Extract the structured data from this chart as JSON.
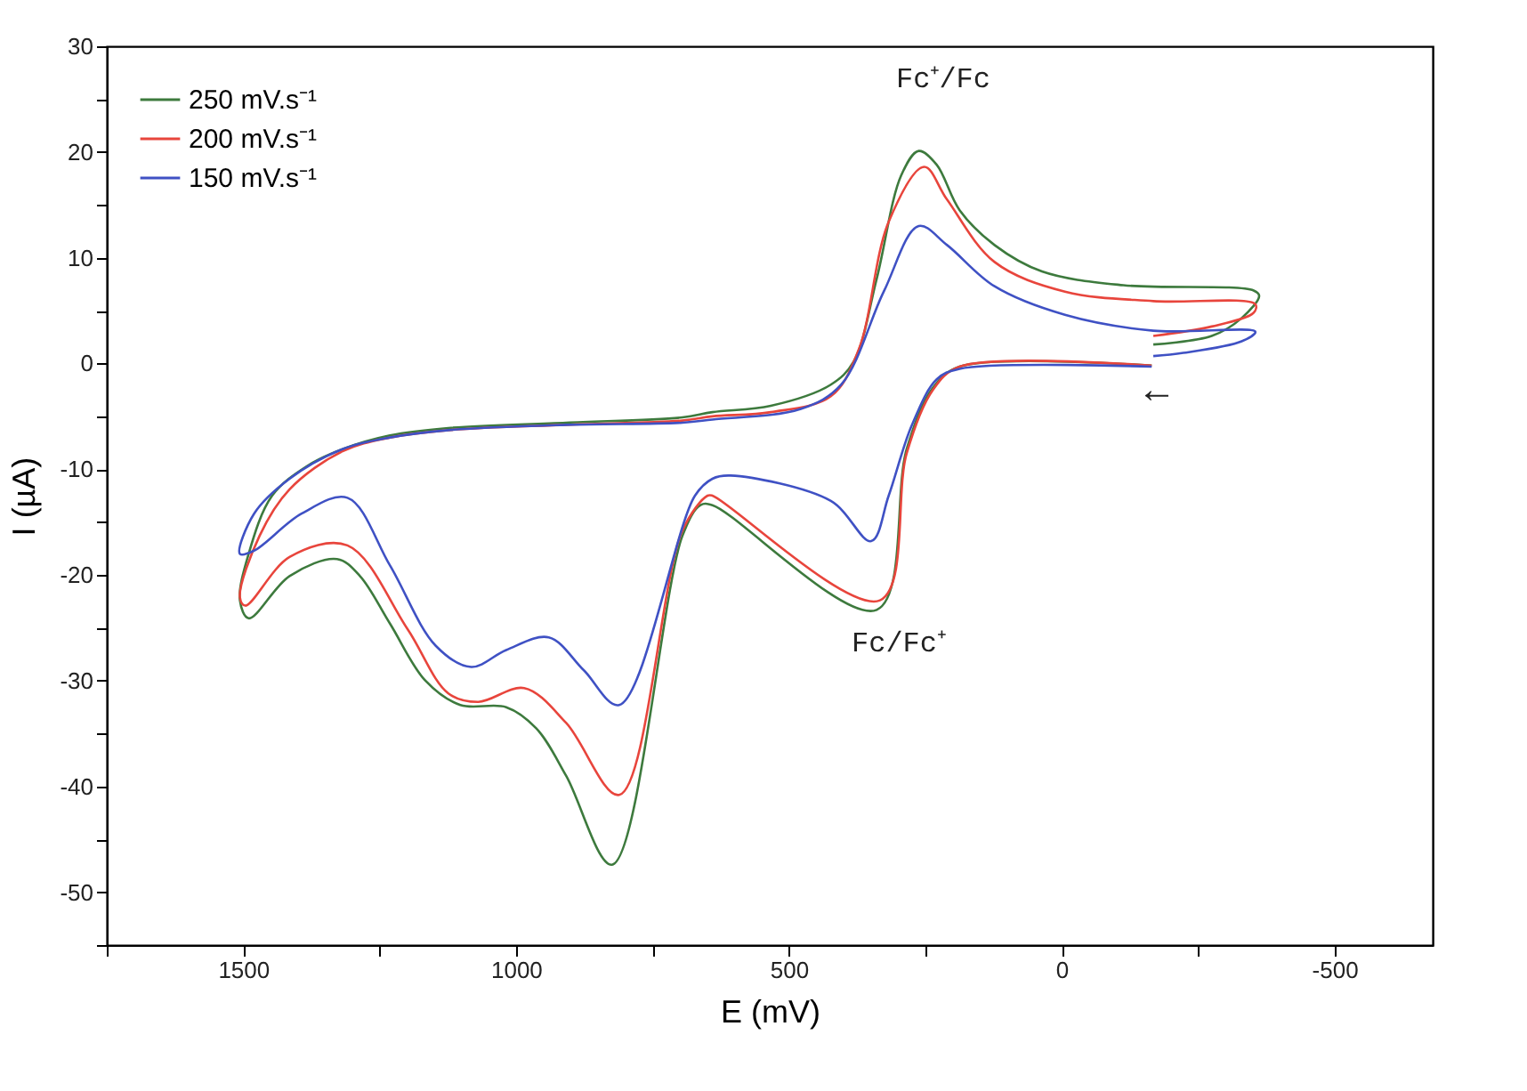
{
  "chart_data": {
    "type": "line",
    "xlabel": "E (mV)",
    "ylabel": "I (µA)",
    "xlim": [
      1750,
      -680
    ],
    "ylim": [
      -55,
      30
    ],
    "xticks": [
      {
        "value": 1750,
        "label": null
      },
      1500,
      {
        "value": 1250,
        "label": null
      },
      1000,
      {
        "value": 750,
        "label": null
      },
      500,
      {
        "value": 250,
        "label": null
      },
      0,
      {
        "value": -250,
        "label": null
      },
      -500
    ],
    "yticks": [
      {
        "value": -55,
        "label": null
      },
      -50,
      {
        "value": -45,
        "label": null
      },
      -40,
      {
        "value": -35,
        "label": null
      },
      -30,
      {
        "value": -25,
        "label": null
      },
      -20,
      {
        "value": -15,
        "label": null
      },
      -10,
      {
        "value": -5,
        "label": null
      },
      0,
      {
        "value": 5,
        "label": null
      },
      10,
      {
        "value": 15,
        "label": null
      },
      20,
      {
        "value": 25,
        "label": null
      },
      30
    ],
    "grid": false,
    "legend": "top left",
    "line_style": "solid",
    "marker": "none",
    "series": [
      {
        "name": "250 mV.s⁻¹",
        "color": "#3d7a3d",
        "x": [
          -165,
          187,
          236,
          284,
          339,
          640,
          662,
          695,
          824,
          908,
          963,
          1018,
          1102,
          1166,
          1231,
          1286,
          1328,
          1415,
          1490,
          1506,
          1490,
          1447,
          1383,
          1318,
          1231,
          1124,
          908,
          695,
          640,
          533,
          423,
          381,
          339,
          294,
          262,
          229,
          187,
          123,
          36,
          -113,
          -352,
          -362,
          -330,
          -275,
          -168
        ],
        "values": [
          -0.2,
          -0.3,
          -2.3,
          -8.1,
          -23.3,
          -13.4,
          -13.4,
          -16.3,
          -47.4,
          -39.0,
          -34.5,
          -32.5,
          -32.3,
          -30.0,
          -24.6,
          -20.1,
          -18.5,
          -20.1,
          -24.1,
          -22.4,
          -18.0,
          -12.5,
          -9.7,
          -8.1,
          -6.8,
          -6.1,
          -5.6,
          -5.1,
          -4.6,
          -4.0,
          -2.0,
          0.2,
          8.0,
          17.8,
          20.1,
          18.8,
          14.5,
          11.2,
          8.7,
          7.4,
          6.9,
          6.4,
          4.3,
          2.6,
          1.8
        ]
      },
      {
        "name": "200 mV.s⁻¹",
        "color": "#e8453c",
        "x": [
          -165,
          187,
          236,
          284,
          333,
          640,
          649,
          695,
          811,
          908,
          985,
          1069,
          1124,
          1199,
          1309,
          1415,
          1496,
          1506,
          1470,
          1415,
          1318,
          1231,
          1124,
          908,
          695,
          640,
          533,
          423,
          372,
          317,
          252,
          210,
          123,
          -6,
          -168,
          -355,
          -352,
          -275,
          -168
        ],
        "values": [
          -0.2,
          -0.3,
          -2.5,
          -8.5,
          -22.4,
          -12.5,
          -12.5,
          -15.8,
          -40.8,
          -34.0,
          -30.7,
          -32.0,
          -31.2,
          -25.1,
          -17.2,
          -18.3,
          -22.9,
          -22.1,
          -16.3,
          -11.9,
          -8.3,
          -7.0,
          -6.3,
          -5.8,
          -5.4,
          -5.0,
          -4.6,
          -3.1,
          1.3,
          13.4,
          18.6,
          15.5,
          9.6,
          6.8,
          5.9,
          5.6,
          4.8,
          3.5,
          2.6
        ]
      },
      {
        "name": "150 mV.s⁻¹",
        "color": "#3f51c4",
        "x": [
          -165,
          187,
          229,
          275,
          317,
          349,
          423,
          607,
          640,
          672,
          811,
          876,
          940,
          1018,
          1082,
          1147,
          1231,
          1309,
          1393,
          1480,
          1506,
          1480,
          1415,
          1318,
          1231,
          1124,
          908,
          695,
          640,
          478,
          404,
          326,
          262,
          210,
          123,
          -6,
          -168,
          -355,
          -330,
          -223,
          -168
        ],
        "values": [
          -0.3,
          -0.5,
          -1.5,
          -5.9,
          -12.5,
          -16.8,
          -13.0,
          -10.6,
          -10.9,
          -12.5,
          -32.3,
          -29.0,
          -25.9,
          -27.1,
          -28.7,
          -26.7,
          -19.1,
          -12.7,
          -14.2,
          -17.7,
          -18.0,
          -14.2,
          -10.9,
          -8.1,
          -7.0,
          -6.3,
          -5.8,
          -5.6,
          -5.3,
          -4.3,
          -2.0,
          6.8,
          13.0,
          11.2,
          7.3,
          4.6,
          3.1,
          3.0,
          2.1,
          1.0,
          0.7
        ]
      }
    ],
    "annotations": [
      "Fc⁺/Fc",
      "Fc/Fc⁺",
      "←"
    ]
  }
}
